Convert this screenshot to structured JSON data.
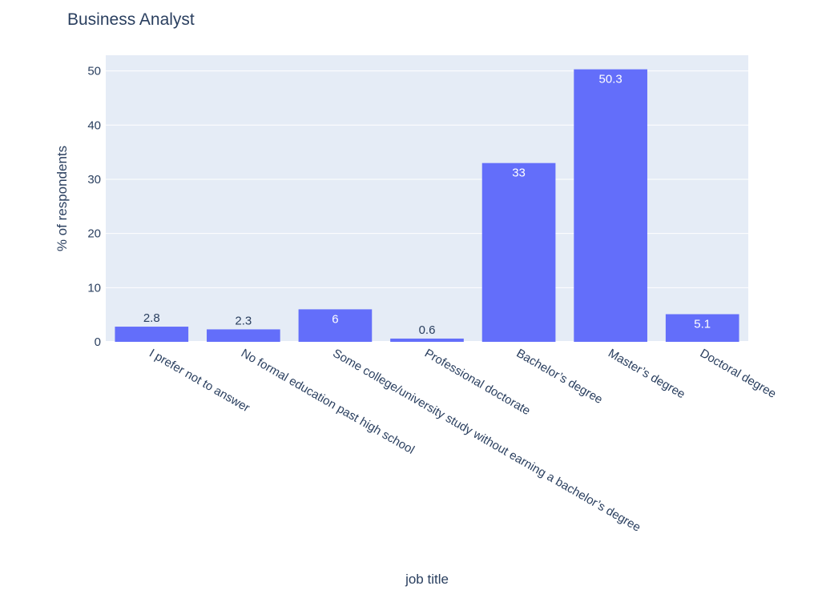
{
  "chart_data": {
    "type": "bar",
    "title": "Business Analyst",
    "xlabel": "job title",
    "ylabel": "% of respondents",
    "categories": [
      "I prefer not to answer",
      "No formal education past high school",
      "Some college/university study without earning a bachelor’s degree",
      "Professional doctorate",
      "Bachelor’s degree",
      "Master’s degree",
      "Doctoral degree"
    ],
    "values": [
      2.8,
      2.3,
      6,
      0.6,
      33,
      50.3,
      5.1
    ],
    "value_labels": [
      "2.8",
      "2.3",
      "6",
      "0.6",
      "33",
      "50.3",
      "5.1"
    ],
    "y_ticks": [
      0,
      10,
      20,
      30,
      40,
      50
    ],
    "ylim": [
      0,
      52.9
    ],
    "grid": true,
    "bar_color": "#636efa",
    "plot_bg": "#e5ecf6",
    "text_color": "#2a3f5f"
  }
}
